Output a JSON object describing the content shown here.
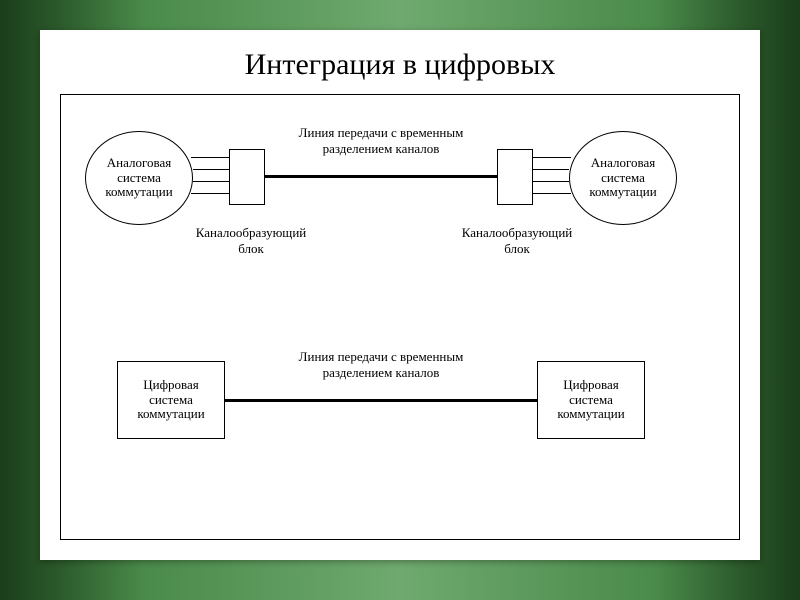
{
  "title": "Интеграция в цифровых",
  "colors": {
    "bg_dark": "#1a3d1a",
    "bg_mid": "#4a8a4a",
    "bg_light": "#6fa96f",
    "panel": "#ffffff",
    "line": "#000000",
    "text": "#000000"
  },
  "fonts": {
    "title_size_pt": 22,
    "label_size_pt": 10,
    "family": "Times New Roman"
  },
  "diagram": {
    "type": "flowchart",
    "top_section": {
      "left_node": {
        "shape": "ellipse",
        "label": "Аналоговая\nсистема\nкоммутации"
      },
      "right_node": {
        "shape": "ellipse",
        "label": "Аналоговая\nсистема\nкоммутации"
      },
      "left_block": {
        "shape": "rect",
        "label_below": "Каналообразующий\nблок"
      },
      "right_block": {
        "shape": "rect",
        "label_below": "Каналообразующий\nблок"
      },
      "link_label": "Линия передачи с временным\nразделением каналов",
      "fan_lines_each_side": 4
    },
    "bottom_section": {
      "left_node": {
        "shape": "rect",
        "label": "Цифровая\nсистема\nкоммутации"
      },
      "right_node": {
        "shape": "rect",
        "label": "Цифровая\nсистема\nкоммутации"
      },
      "link_label": "Линия передачи с временным\nразделением каналов"
    }
  }
}
